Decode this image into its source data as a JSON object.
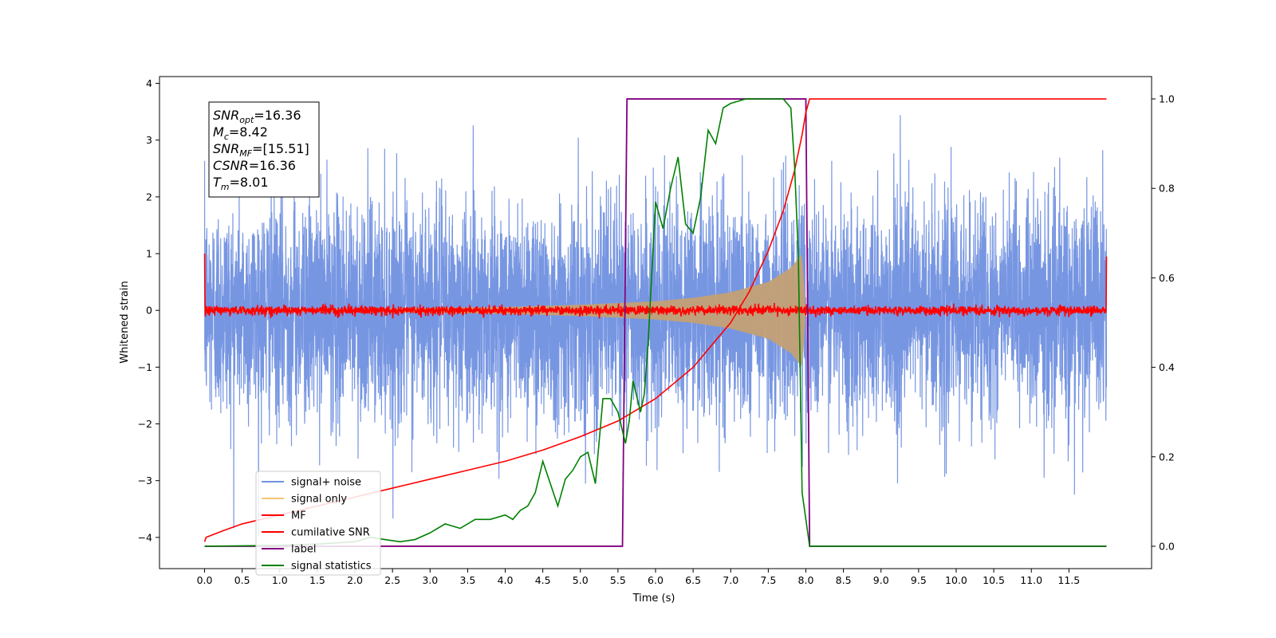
{
  "chart_data": {
    "type": "line",
    "xlabel": "Time (s)",
    "ylabel": "Whitened strain",
    "xlim": [
      -0.6,
      12.6
    ],
    "ylim": [
      -4.55,
      4.12
    ],
    "y2lim": [
      -0.05,
      1.05
    ],
    "x_ticks": [
      "0.0",
      "0.5",
      "1.0",
      "1.5",
      "2.0",
      "2.5",
      "3.0",
      "3.5",
      "4.0",
      "4.5",
      "5.0",
      "5.5",
      "6.0",
      "6.5",
      "7.0",
      "7.5",
      "8.0",
      "8.5",
      "9.0",
      "9.5",
      "10.0",
      "10.5",
      "11.0",
      "11.5"
    ],
    "y_ticks": [
      "4",
      "3",
      "2",
      "1",
      "0",
      "−1",
      "−2",
      "−3",
      "−4"
    ],
    "y2_ticks": [
      "1.0",
      "0.8",
      "0.6",
      "0.4",
      "0.2",
      "0.0"
    ],
    "annotation": [
      {
        "name": "SNR",
        "sub": "opt",
        "value": "=16.36"
      },
      {
        "name": "M",
        "sub": "c",
        "value": "=8.42"
      },
      {
        "name": "SNR",
        "sub": "MF",
        "value": "=[15.51]"
      },
      {
        "name": "CSNR",
        "sub": "",
        "value": "=16.36"
      },
      {
        "name": "T",
        "sub": "m",
        "value": "=8.01"
      }
    ],
    "legend": {
      "placement": "lower-left",
      "entries": [
        {
          "label": "signal+ noise",
          "color": "#7090e0"
        },
        {
          "label": "signal only",
          "color": "#f5c674"
        },
        {
          "label": "MF",
          "color": "#ff0000"
        },
        {
          "label": "cumilative SNR",
          "color": "#ff0000"
        },
        {
          "label": "label",
          "color": "#800080"
        },
        {
          "label": "signal statistics",
          "color": "#008000"
        }
      ]
    },
    "series": [
      {
        "name": "signal+ noise",
        "axis": "left",
        "color": "#7090e0",
        "description_values": {
          "t_start": 0.0,
          "t_end": 12.0,
          "std": 1.0,
          "max": 3.7,
          "min": -4.15
        }
      },
      {
        "name": "signal only",
        "axis": "left",
        "color": "#c4a074",
        "envelope": {
          "x": [
            0.0,
            2.0,
            4.0,
            5.0,
            6.0,
            6.5,
            7.0,
            7.5,
            7.8,
            7.95,
            8.0
          ],
          "amplitude": [
            0.02,
            0.03,
            0.06,
            0.1,
            0.16,
            0.22,
            0.32,
            0.5,
            0.75,
            1.0,
            0.0
          ]
        }
      },
      {
        "name": "MF",
        "axis": "left",
        "color": "#ff0000",
        "description_values": {
          "t_start": 0.0,
          "t_end": 12.0,
          "std": 0.04,
          "start_value": 1.0,
          "end_value": 0.95
        }
      },
      {
        "name": "cumilative SNR",
        "axis": "right",
        "color": "#ff0000",
        "x": [
          0.0,
          0.02,
          0.25,
          0.5,
          1.0,
          1.5,
          2.0,
          2.5,
          3.0,
          3.5,
          4.0,
          4.5,
          5.0,
          5.5,
          6.0,
          6.5,
          7.0,
          7.25,
          7.5,
          7.7,
          7.85,
          7.95,
          8.0,
          8.05,
          12.0
        ],
        "y": [
          0.01,
          0.02,
          0.035,
          0.05,
          0.07,
          0.09,
          0.11,
          0.13,
          0.15,
          0.17,
          0.19,
          0.215,
          0.245,
          0.28,
          0.33,
          0.4,
          0.5,
          0.57,
          0.66,
          0.75,
          0.84,
          0.92,
          0.97,
          1.0,
          1.0
        ]
      },
      {
        "name": "label",
        "axis": "right",
        "color": "#800080",
        "x": [
          0.0,
          5.56,
          5.62,
          8.0,
          8.05,
          12.0
        ],
        "y": [
          0.0,
          0.0,
          1.0,
          1.0,
          0.0,
          0.0
        ]
      },
      {
        "name": "signal statistics",
        "axis": "right",
        "color": "#008000",
        "x": [
          0.0,
          0.5,
          1.0,
          1.5,
          2.0,
          2.2,
          2.4,
          2.6,
          2.8,
          3.0,
          3.2,
          3.4,
          3.6,
          3.8,
          4.0,
          4.1,
          4.2,
          4.3,
          4.4,
          4.5,
          4.6,
          4.7,
          4.8,
          4.9,
          5.0,
          5.1,
          5.2,
          5.3,
          5.4,
          5.5,
          5.6,
          5.65,
          5.7,
          5.8,
          5.85,
          5.9,
          6.0,
          6.1,
          6.2,
          6.3,
          6.4,
          6.5,
          6.6,
          6.7,
          6.8,
          6.9,
          7.0,
          7.2,
          7.4,
          7.5,
          7.6,
          7.7,
          7.75,
          7.8,
          7.85,
          7.9,
          7.95,
          8.05,
          8.2,
          12.0
        ],
        "y": [
          0.0,
          0.001,
          0.002,
          0.005,
          0.01,
          0.02,
          0.015,
          0.01,
          0.015,
          0.03,
          0.05,
          0.04,
          0.06,
          0.06,
          0.07,
          0.06,
          0.08,
          0.09,
          0.12,
          0.19,
          0.14,
          0.09,
          0.15,
          0.17,
          0.2,
          0.21,
          0.14,
          0.33,
          0.33,
          0.3,
          0.23,
          0.28,
          0.37,
          0.3,
          0.34,
          0.45,
          0.77,
          0.71,
          0.8,
          0.87,
          0.72,
          0.7,
          0.78,
          0.93,
          0.9,
          0.98,
          0.99,
          1.0,
          1.0,
          1.0,
          1.0,
          1.0,
          0.99,
          0.98,
          0.85,
          0.65,
          0.12,
          0.0,
          0.0,
          0.0
        ]
      }
    ]
  }
}
